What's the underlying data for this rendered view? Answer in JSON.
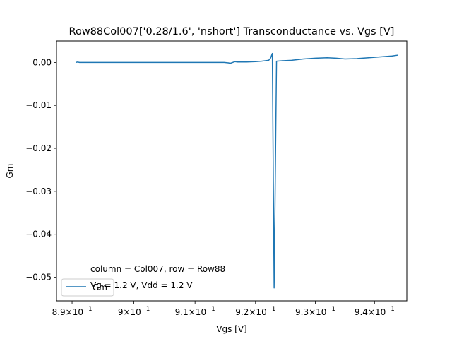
{
  "chart_data": {
    "type": "line",
    "title": "Row88Col007['0.28/1.6', 'nshort'] Transconductance vs. Vgs [V]",
    "xlabel": "Vgs [V]",
    "ylabel": "Gm",
    "xscale": "log",
    "xlim": [
      0.8875,
      0.9455
    ],
    "ylim": [
      -0.0555,
      0.005
    ],
    "x_ticks": [
      {
        "value": 0.89,
        "mant": "8.9",
        "exp": "−1"
      },
      {
        "value": 0.9,
        "mant": "9",
        "exp": "−1"
      },
      {
        "value": 0.91,
        "mant": "9.1",
        "exp": "−1"
      },
      {
        "value": 0.92,
        "mant": "9.2",
        "exp": "−1"
      },
      {
        "value": 0.93,
        "mant": "9.3",
        "exp": "−1"
      },
      {
        "value": 0.94,
        "mant": "9.4",
        "exp": "−1"
      }
    ],
    "y_ticks": [
      {
        "value": 0.0,
        "label": "0.00"
      },
      {
        "value": -0.01,
        "label": "−0.01"
      },
      {
        "value": -0.02,
        "label": "−0.02"
      },
      {
        "value": -0.03,
        "label": "−0.03"
      },
      {
        "value": -0.04,
        "label": "−0.04"
      },
      {
        "value": -0.05,
        "label": "−0.05"
      }
    ],
    "grid": false,
    "legend_position": "lower-left",
    "series": [
      {
        "name": "Gm",
        "color": "#1f77b4",
        "points": [
          [
            0.8906,
            0.0
          ],
          [
            0.8909,
            0.0001
          ],
          [
            0.8912,
            0.0
          ],
          [
            0.895,
            0.0
          ],
          [
            0.9,
            0.0
          ],
          [
            0.905,
            0.0
          ],
          [
            0.91,
            0.0
          ],
          [
            0.9148,
            0.0
          ],
          [
            0.9155,
            -0.0001
          ],
          [
            0.9158,
            -0.0002
          ],
          [
            0.9162,
            0.0
          ],
          [
            0.9166,
            0.0002
          ],
          [
            0.917,
            0.0001
          ],
          [
            0.9185,
            0.0001
          ],
          [
            0.92,
            0.0002
          ],
          [
            0.921,
            0.0003
          ],
          [
            0.9222,
            0.0005
          ],
          [
            0.9225,
            0.001
          ],
          [
            0.9228,
            0.0021
          ],
          [
            0.9231,
            -0.0525
          ],
          [
            0.9235,
            0.0003
          ],
          [
            0.9245,
            0.0004
          ],
          [
            0.926,
            0.0005
          ],
          [
            0.928,
            0.0008
          ],
          [
            0.93,
            0.001
          ],
          [
            0.932,
            0.0011
          ],
          [
            0.9335,
            0.001
          ],
          [
            0.935,
            0.0008
          ],
          [
            0.937,
            0.0009
          ],
          [
            0.939,
            0.0011
          ],
          [
            0.941,
            0.0013
          ],
          [
            0.943,
            0.0015
          ],
          [
            0.944,
            0.0017
          ]
        ]
      }
    ],
    "annotations": [
      "column = Col007, row = Row88",
      "Vg = 1.2 V, Vdd = 1.2 V"
    ]
  }
}
